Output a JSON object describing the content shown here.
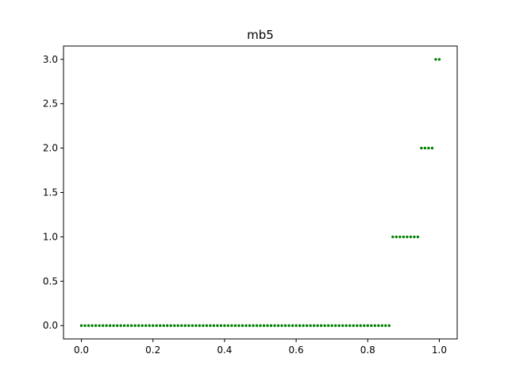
{
  "chart_data": {
    "type": "scatter",
    "title": "mb5",
    "xlabel": "",
    "ylabel": "",
    "xlim": [
      -0.05,
      1.05
    ],
    "ylim": [
      -0.15,
      3.15
    ],
    "xticks": [
      0.0,
      0.2,
      0.4,
      0.6,
      0.8,
      1.0
    ],
    "xtick_labels": [
      "0.0",
      "0.2",
      "0.4",
      "0.6",
      "0.8",
      "1.0"
    ],
    "yticks": [
      0.0,
      0.5,
      1.0,
      1.5,
      2.0,
      2.5,
      3.0
    ],
    "ytick_labels": [
      "0.0",
      "0.5",
      "1.0",
      "1.5",
      "2.0",
      "2.5",
      "3.0"
    ],
    "grid": false,
    "marker_color": "#008000",
    "series": [
      {
        "x": [
          0.0,
          0.01,
          0.02,
          0.03,
          0.04,
          0.05,
          0.06,
          0.07,
          0.08,
          0.09,
          0.1,
          0.11,
          0.12,
          0.13,
          0.14,
          0.15,
          0.16,
          0.17,
          0.18,
          0.19,
          0.2,
          0.21,
          0.22,
          0.23,
          0.24,
          0.25,
          0.26,
          0.27,
          0.28,
          0.29,
          0.3,
          0.31,
          0.32,
          0.33,
          0.34,
          0.35,
          0.36,
          0.37,
          0.38,
          0.39,
          0.4,
          0.41,
          0.42,
          0.43,
          0.44,
          0.45,
          0.46,
          0.47,
          0.48,
          0.49,
          0.5,
          0.51,
          0.52,
          0.53,
          0.54,
          0.55,
          0.56,
          0.57,
          0.58,
          0.59,
          0.6,
          0.61,
          0.62,
          0.63,
          0.64,
          0.65,
          0.66,
          0.67,
          0.68,
          0.69,
          0.7,
          0.71,
          0.72,
          0.73,
          0.74,
          0.75,
          0.76,
          0.77,
          0.78,
          0.79,
          0.8,
          0.81,
          0.82,
          0.83,
          0.84,
          0.85,
          0.86,
          0.87,
          0.88,
          0.89,
          0.9,
          0.91,
          0.92,
          0.93,
          0.94,
          0.95,
          0.96,
          0.97,
          0.98,
          0.99,
          1.0
        ],
        "y": [
          0,
          0,
          0,
          0,
          0,
          0,
          0,
          0,
          0,
          0,
          0,
          0,
          0,
          0,
          0,
          0,
          0,
          0,
          0,
          0,
          0,
          0,
          0,
          0,
          0,
          0,
          0,
          0,
          0,
          0,
          0,
          0,
          0,
          0,
          0,
          0,
          0,
          0,
          0,
          0,
          0,
          0,
          0,
          0,
          0,
          0,
          0,
          0,
          0,
          0,
          0,
          0,
          0,
          0,
          0,
          0,
          0,
          0,
          0,
          0,
          0,
          0,
          0,
          0,
          0,
          0,
          0,
          0,
          0,
          0,
          0,
          0,
          0,
          0,
          0,
          0,
          0,
          0,
          0,
          0,
          0,
          0,
          0,
          0,
          0,
          0,
          0,
          1,
          1,
          1,
          1,
          1,
          1,
          1,
          1,
          2,
          2,
          2,
          2,
          3,
          3
        ]
      }
    ]
  }
}
